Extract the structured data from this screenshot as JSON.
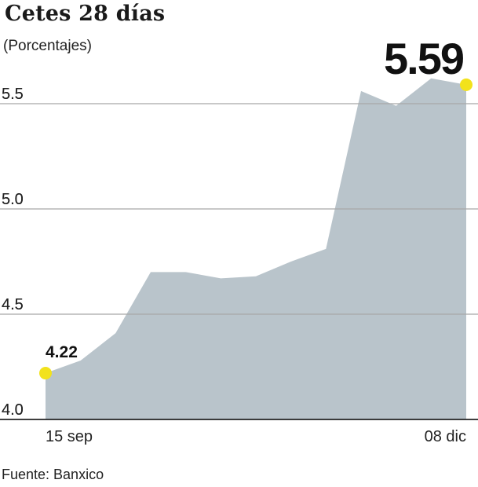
{
  "title": "Cetes 28 días",
  "subtitle": "(Porcentajes)",
  "source": "Fuente: Banxico",
  "chart_data": {
    "type": "area",
    "title": "Cetes 28 días",
    "subtitle": "(Porcentajes)",
    "ylim": [
      4.0,
      5.65
    ],
    "yticks": [
      "4.0",
      "4.5",
      "5.0",
      "5.5"
    ],
    "ytick_values": [
      4.0,
      4.5,
      5.0,
      5.5
    ],
    "x_labels": [
      "15 sep",
      "08 dic"
    ],
    "grid": true,
    "fill_color": "#b9c4cb",
    "highlight_color": "#f2e21c",
    "series": [
      {
        "values": [
          4.22,
          4.28,
          4.41,
          4.7,
          4.7,
          4.67,
          4.68,
          4.75,
          4.81,
          5.56,
          5.49,
          5.62,
          5.59
        ]
      }
    ],
    "start_label": "4.22",
    "end_label": "5.59"
  }
}
